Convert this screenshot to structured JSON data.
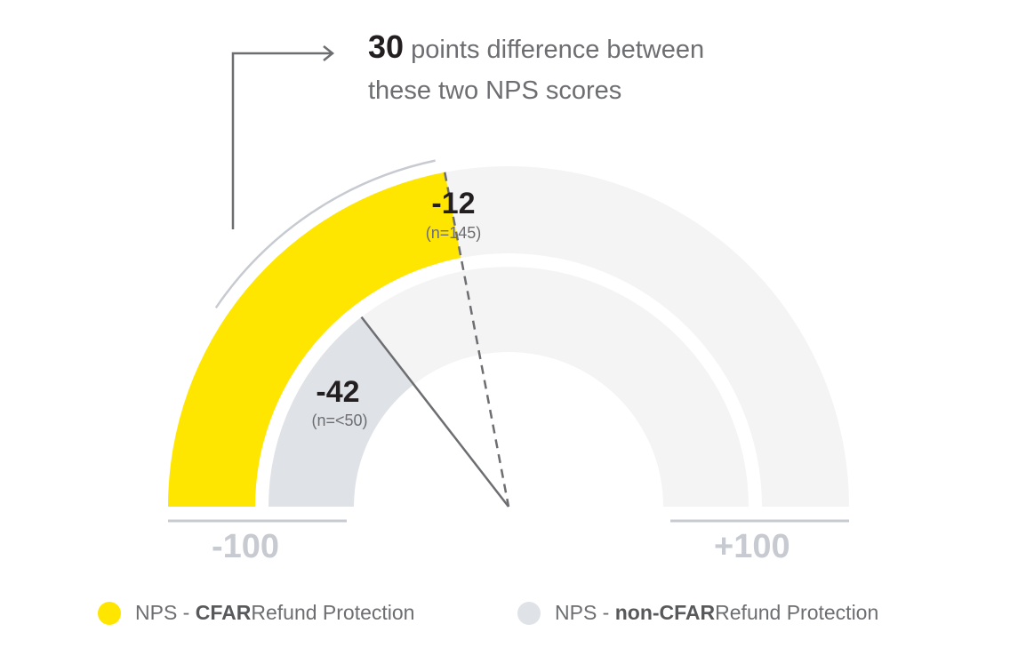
{
  "headline": {
    "number": "30",
    "line1_rest": " points difference between",
    "line2": "these two NPS scores"
  },
  "labels": {
    "cfar_value": "-12",
    "cfar_n": "(n=145)",
    "noncfar_value": "-42",
    "noncfar_n": "(n=<50)",
    "axis_min": "-100",
    "axis_max": "+100"
  },
  "legend": [
    {
      "prefix": "NPS - ",
      "bold": "CFAR",
      "suffix": " Refund Protection",
      "color": "#ffe600"
    },
    {
      "prefix": "NPS - ",
      "bold": "non-CFAR",
      "suffix": " Refund Protection",
      "color": "#dfe2e6"
    }
  ],
  "colors": {
    "cfar": "#ffe600",
    "noncfar": "#dfe2e6",
    "track": "#f4f4f4",
    "line": "#6d6e71",
    "bracket": "#c7cbd1"
  },
  "chart_data": {
    "type": "gauge",
    "title": "30 points difference between these two NPS scores",
    "range": [
      -100,
      100
    ],
    "series": [
      {
        "name": "NPS - CFAR Refund Protection",
        "value": -12,
        "n": "145",
        "ring": "outer",
        "color": "#ffe600"
      },
      {
        "name": "NPS - non-CFAR Refund Protection",
        "value": -42,
        "n": "<50",
        "ring": "inner",
        "color": "#dfe2e6"
      }
    ],
    "annotation": "30 points difference",
    "tick_labels": [
      "-100",
      "+100"
    ]
  }
}
